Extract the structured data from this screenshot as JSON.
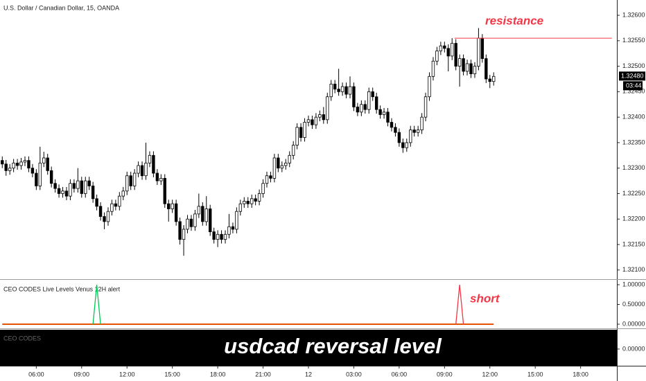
{
  "chart_data": [
    {
      "type": "candlestick",
      "title": "U.S. Dollar / Canadian Dollar, 15, OANDA",
      "candles": [
        [
          3.75,
          1.32315,
          1.32323,
          1.323,
          1.32308
        ],
        [
          4.0,
          1.32308,
          1.32316,
          1.32285,
          1.32295
        ],
        [
          4.25,
          1.32295,
          1.32308,
          1.32287,
          1.323
        ],
        [
          4.5,
          1.323,
          1.32318,
          1.32292,
          1.3231
        ],
        [
          4.75,
          1.3231,
          1.32318,
          1.32297,
          1.32305
        ],
        [
          5.0,
          1.32305,
          1.3232,
          1.32297,
          1.32312
        ],
        [
          5.25,
          1.32312,
          1.32323,
          1.32304,
          1.32315
        ],
        [
          5.5,
          1.32315,
          1.32323,
          1.32292,
          1.323
        ],
        [
          5.75,
          1.323,
          1.32308,
          1.32282,
          1.3229
        ],
        [
          6.0,
          1.3229,
          1.32298,
          1.32257,
          1.32265
        ],
        [
          6.25,
          1.32265,
          1.32342,
          1.32257,
          1.3231
        ],
        [
          6.5,
          1.3231,
          1.32332,
          1.32302,
          1.3232
        ],
        [
          6.75,
          1.3232,
          1.32328,
          1.32287,
          1.32295
        ],
        [
          7.0,
          1.32295,
          1.32303,
          1.32262,
          1.3227
        ],
        [
          7.25,
          1.3227,
          1.32278,
          1.32252,
          1.3226
        ],
        [
          7.5,
          1.3226,
          1.32268,
          1.32242,
          1.3225
        ],
        [
          7.75,
          1.3225,
          1.32263,
          1.32242,
          1.32255
        ],
        [
          8.0,
          1.32255,
          1.32263,
          1.32237,
          1.32245
        ],
        [
          8.25,
          1.32245,
          1.32278,
          1.32237,
          1.3227
        ],
        [
          8.5,
          1.3227,
          1.32278,
          1.32252,
          1.3226
        ],
        [
          8.75,
          1.3226,
          1.323,
          1.32252,
          1.32275
        ],
        [
          9.0,
          1.32275,
          1.32283,
          1.32242,
          1.3225
        ],
        [
          9.25,
          1.3225,
          1.32283,
          1.32242,
          1.32275
        ],
        [
          9.5,
          1.32275,
          1.32283,
          1.32257,
          1.32265
        ],
        [
          9.75,
          1.32265,
          1.32273,
          1.32232,
          1.3224
        ],
        [
          10.0,
          1.3224,
          1.32248,
          1.32217,
          1.32225
        ],
        [
          10.25,
          1.32225,
          1.32233,
          1.32197,
          1.32205
        ],
        [
          10.5,
          1.32205,
          1.32213,
          1.3218,
          1.32195
        ],
        [
          10.75,
          1.32195,
          1.32223,
          1.32187,
          1.32215
        ],
        [
          11.0,
          1.32215,
          1.32238,
          1.32207,
          1.3223
        ],
        [
          11.25,
          1.3223,
          1.32238,
          1.32217,
          1.32225
        ],
        [
          11.5,
          1.32225,
          1.32253,
          1.32217,
          1.32245
        ],
        [
          11.75,
          1.32245,
          1.32263,
          1.32237,
          1.32255
        ],
        [
          12.0,
          1.32255,
          1.32293,
          1.32247,
          1.32285
        ],
        [
          12.25,
          1.32285,
          1.32293,
          1.32257,
          1.32265
        ],
        [
          12.5,
          1.32265,
          1.32298,
          1.32257,
          1.3229
        ],
        [
          12.75,
          1.3229,
          1.32313,
          1.32282,
          1.32305
        ],
        [
          13.0,
          1.32305,
          1.32313,
          1.32277,
          1.32285
        ],
        [
          13.25,
          1.32285,
          1.3235,
          1.32277,
          1.3231
        ],
        [
          13.5,
          1.3231,
          1.32333,
          1.32302,
          1.32325
        ],
        [
          13.75,
          1.32325,
          1.32333,
          1.32282,
          1.3229
        ],
        [
          14.0,
          1.3229,
          1.32298,
          1.32267,
          1.32275
        ],
        [
          14.25,
          1.32275,
          1.32288,
          1.32267,
          1.3228
        ],
        [
          14.5,
          1.3228,
          1.32288,
          1.32222,
          1.3223
        ],
        [
          14.75,
          1.3223,
          1.32238,
          1.32195,
          1.3222
        ],
        [
          15.0,
          1.3222,
          1.32238,
          1.32212,
          1.3223
        ],
        [
          15.25,
          1.3223,
          1.32238,
          1.32187,
          1.32195
        ],
        [
          15.5,
          1.32195,
          1.32203,
          1.3215,
          1.3216
        ],
        [
          15.75,
          1.3216,
          1.32188,
          1.32128,
          1.3218
        ],
        [
          16.0,
          1.3218,
          1.32208,
          1.32172,
          1.322
        ],
        [
          16.25,
          1.322,
          1.32208,
          1.32177,
          1.32185
        ],
        [
          16.5,
          1.32185,
          1.32218,
          1.32177,
          1.3221
        ],
        [
          16.75,
          1.3221,
          1.3225,
          1.32202,
          1.32225
        ],
        [
          17.0,
          1.32225,
          1.32233,
          1.32187,
          1.32195
        ],
        [
          17.25,
          1.32195,
          1.32245,
          1.32187,
          1.3222
        ],
        [
          17.5,
          1.3222,
          1.32228,
          1.32167,
          1.32175
        ],
        [
          17.75,
          1.32175,
          1.32183,
          1.32152,
          1.3216
        ],
        [
          18.0,
          1.3216,
          1.32178,
          1.32145,
          1.3217
        ],
        [
          18.25,
          1.3217,
          1.32178,
          1.32152,
          1.3216
        ],
        [
          18.5,
          1.3216,
          1.32178,
          1.32152,
          1.3217
        ],
        [
          18.75,
          1.3217,
          1.3221,
          1.32162,
          1.32185
        ],
        [
          19.0,
          1.32185,
          1.32193,
          1.32172,
          1.3218
        ],
        [
          19.25,
          1.3218,
          1.32223,
          1.32172,
          1.32215
        ],
        [
          19.5,
          1.32215,
          1.32238,
          1.32207,
          1.3223
        ],
        [
          19.75,
          1.3223,
          1.32243,
          1.32222,
          1.32235
        ],
        [
          20.0,
          1.32235,
          1.32243,
          1.32222,
          1.3223
        ],
        [
          20.25,
          1.3223,
          1.32248,
          1.32222,
          1.3224
        ],
        [
          20.5,
          1.3224,
          1.32248,
          1.32227,
          1.32235
        ],
        [
          20.75,
          1.32235,
          1.32258,
          1.32227,
          1.3225
        ],
        [
          21.0,
          1.3225,
          1.32278,
          1.32242,
          1.3227
        ],
        [
          21.25,
          1.3227,
          1.32293,
          1.32262,
          1.32285
        ],
        [
          21.5,
          1.32285,
          1.32293,
          1.32272,
          1.3228
        ],
        [
          21.75,
          1.3228,
          1.32328,
          1.32272,
          1.3232
        ],
        [
          22.0,
          1.3232,
          1.32328,
          1.32292,
          1.323
        ],
        [
          22.25,
          1.323,
          1.32313,
          1.32292,
          1.32305
        ],
        [
          22.5,
          1.32305,
          1.32318,
          1.32297,
          1.3231
        ],
        [
          22.75,
          1.3231,
          1.32333,
          1.32302,
          1.32325
        ],
        [
          23.0,
          1.32325,
          1.32353,
          1.32317,
          1.32345
        ],
        [
          23.25,
          1.32345,
          1.32388,
          1.32337,
          1.3238
        ],
        [
          23.5,
          1.3238,
          1.32388,
          1.32352,
          1.3236
        ],
        [
          23.75,
          1.3236,
          1.32398,
          1.32352,
          1.3239
        ],
        [
          24.0,
          1.3239,
          1.32403,
          1.32382,
          1.32395
        ],
        [
          24.25,
          1.32395,
          1.32403,
          1.32377,
          1.32385
        ],
        [
          24.5,
          1.32385,
          1.32408,
          1.32377,
          1.324
        ],
        [
          24.75,
          1.324,
          1.32413,
          1.32392,
          1.32405
        ],
        [
          25.0,
          1.32405,
          1.3242,
          1.32387,
          1.32395
        ],
        [
          25.25,
          1.32395,
          1.32448,
          1.32387,
          1.3244
        ],
        [
          25.5,
          1.3244,
          1.32473,
          1.32432,
          1.32465
        ],
        [
          25.75,
          1.32465,
          1.32473,
          1.32447,
          1.32455
        ],
        [
          26.0,
          1.32455,
          1.32495,
          1.32442,
          1.3245
        ],
        [
          26.25,
          1.3245,
          1.32468,
          1.32442,
          1.3246
        ],
        [
          26.5,
          1.3246,
          1.32468,
          1.32437,
          1.32445
        ],
        [
          26.75,
          1.32445,
          1.3248,
          1.32437,
          1.3246
        ],
        [
          27.0,
          1.3246,
          1.32468,
          1.32412,
          1.3242
        ],
        [
          27.25,
          1.3242,
          1.32428,
          1.32402,
          1.3241
        ],
        [
          27.5,
          1.3241,
          1.32433,
          1.32402,
          1.32425
        ],
        [
          27.75,
          1.32425,
          1.32433,
          1.32407,
          1.32415
        ],
        [
          28.0,
          1.32415,
          1.32458,
          1.32407,
          1.3245
        ],
        [
          28.25,
          1.3245,
          1.32458,
          1.32432,
          1.3244
        ],
        [
          28.5,
          1.3244,
          1.32448,
          1.32407,
          1.32415
        ],
        [
          28.75,
          1.32415,
          1.32423,
          1.32397,
          1.32405
        ],
        [
          29.0,
          1.32405,
          1.32418,
          1.32397,
          1.3241
        ],
        [
          29.25,
          1.3241,
          1.32418,
          1.32382,
          1.3239
        ],
        [
          29.5,
          1.3239,
          1.32398,
          1.32372,
          1.3238
        ],
        [
          29.75,
          1.3238,
          1.32388,
          1.32362,
          1.3237
        ],
        [
          30.0,
          1.3237,
          1.32378,
          1.32342,
          1.3235
        ],
        [
          30.25,
          1.3235,
          1.32358,
          1.3233,
          1.3234
        ],
        [
          30.5,
          1.3234,
          1.32358,
          1.32332,
          1.3235
        ],
        [
          30.75,
          1.3235,
          1.32383,
          1.32342,
          1.32375
        ],
        [
          31.0,
          1.32375,
          1.32383,
          1.32362,
          1.3237
        ],
        [
          31.25,
          1.3237,
          1.32383,
          1.32362,
          1.32375
        ],
        [
          31.5,
          1.32375,
          1.32408,
          1.32367,
          1.324
        ],
        [
          31.75,
          1.324,
          1.32448,
          1.32392,
          1.3244
        ],
        [
          32.0,
          1.3244,
          1.32488,
          1.32432,
          1.3248
        ],
        [
          32.25,
          1.3248,
          1.32518,
          1.32472,
          1.3251
        ],
        [
          32.5,
          1.3251,
          1.32538,
          1.32502,
          1.3253
        ],
        [
          32.75,
          1.3253,
          1.32548,
          1.32522,
          1.3254
        ],
        [
          33.0,
          1.3254,
          1.32548,
          1.32527,
          1.32535
        ],
        [
          33.25,
          1.32535,
          1.32543,
          1.3249,
          1.3252
        ],
        [
          33.5,
          1.3252,
          1.32555,
          1.32512,
          1.32545
        ],
        [
          33.75,
          1.32545,
          1.32553,
          1.32492,
          1.325
        ],
        [
          34.0,
          1.325,
          1.32523,
          1.3246,
          1.32515
        ],
        [
          34.25,
          1.32515,
          1.32523,
          1.32482,
          1.3249
        ],
        [
          34.5,
          1.3249,
          1.32513,
          1.32482,
          1.32505
        ],
        [
          34.75,
          1.32505,
          1.32513,
          1.32477,
          1.32485
        ],
        [
          35.0,
          1.32485,
          1.32508,
          1.32477,
          1.325
        ],
        [
          35.25,
          1.325,
          1.32575,
          1.32492,
          1.32555
        ],
        [
          35.5,
          1.32555,
          1.32563,
          1.32507,
          1.32515
        ],
        [
          35.75,
          1.32515,
          1.32523,
          1.32467,
          1.32475
        ],
        [
          36.0,
          1.32475,
          1.32483,
          1.32457,
          1.3247
        ],
        [
          36.25,
          1.3247,
          1.32488,
          1.32462,
          1.3248
        ]
      ],
      "up_color": "#ffffff",
      "down_color": "#000000",
      "edge_color": "#000000",
      "xlim": [
        3.6,
        44.4
      ],
      "ylim": [
        1.32082,
        1.3263
      ],
      "xticks": [
        {
          "value": 6,
          "label": "06:00"
        },
        {
          "value": 9,
          "label": "09:00"
        },
        {
          "value": 12,
          "label": "12:00"
        },
        {
          "value": 15,
          "label": "15:00"
        },
        {
          "value": 18,
          "label": "18:00"
        },
        {
          "value": 21,
          "label": "21:00"
        },
        {
          "value": 24,
          "label": "12"
        },
        {
          "value": 27,
          "label": "03:00"
        },
        {
          "value": 30,
          "label": "06:00"
        },
        {
          "value": 33,
          "label": "09:00"
        },
        {
          "value": 36,
          "label": "12:00"
        },
        {
          "value": 39,
          "label": "15:00"
        },
        {
          "value": 42,
          "label": "18:00"
        }
      ],
      "yticks": [
        {
          "value": 1.321,
          "label": "1.32100"
        },
        {
          "value": 1.3215,
          "label": "1.32150"
        },
        {
          "value": 1.322,
          "label": "1.32200"
        },
        {
          "value": 1.3225,
          "label": "1.32250"
        },
        {
          "value": 1.323,
          "label": "1.32300"
        },
        {
          "value": 1.3235,
          "label": "1.32350"
        },
        {
          "value": 1.324,
          "label": "1.32400"
        },
        {
          "value": 1.3245,
          "label": "1.32450"
        },
        {
          "value": 1.325,
          "label": "1.32500"
        },
        {
          "value": 1.3255,
          "label": "1.32550"
        },
        {
          "value": 1.326,
          "label": "1.32600"
        }
      ],
      "last_price": {
        "value": 1.3248,
        "label": "1.32480"
      },
      "countdown": "03:44",
      "resistance": {
        "label": "resistance",
        "value": 1.32555,
        "x": [
          33.66,
          44.07
        ],
        "color": "#f23645"
      }
    },
    {
      "type": "line",
      "title": "CEO CODES Live Levels Venus 12H alert",
      "xlim": [
        3.6,
        44.4
      ],
      "ylim": [
        -0.105,
        1.123
      ],
      "yticks": [
        {
          "value": 0,
          "label": "0.00000"
        },
        {
          "value": 0.5,
          "label": "0.50000"
        },
        {
          "value": 1,
          "label": "1.00000"
        }
      ],
      "series": [
        {
          "color": "#e65100",
          "x": [
            3.75,
            36.25
          ],
          "values": [
            0,
            0
          ]
        },
        {
          "color": "#00c853",
          "x": [
            9.75,
            10.0,
            10.25
          ],
          "values": [
            0,
            1,
            0
          ]
        },
        {
          "color": "#f23645",
          "x": [
            33.75,
            34.0,
            34.25
          ],
          "values": [
            0,
            1,
            0
          ]
        }
      ],
      "annotation": "short"
    },
    {
      "type": "panel",
      "title": "CEO CODES",
      "banner": "usdcad reversal level",
      "ylim": [
        -0.4,
        0.5
      ],
      "yticks": [
        {
          "value": 0,
          "label": "0.00000"
        }
      ]
    }
  ]
}
